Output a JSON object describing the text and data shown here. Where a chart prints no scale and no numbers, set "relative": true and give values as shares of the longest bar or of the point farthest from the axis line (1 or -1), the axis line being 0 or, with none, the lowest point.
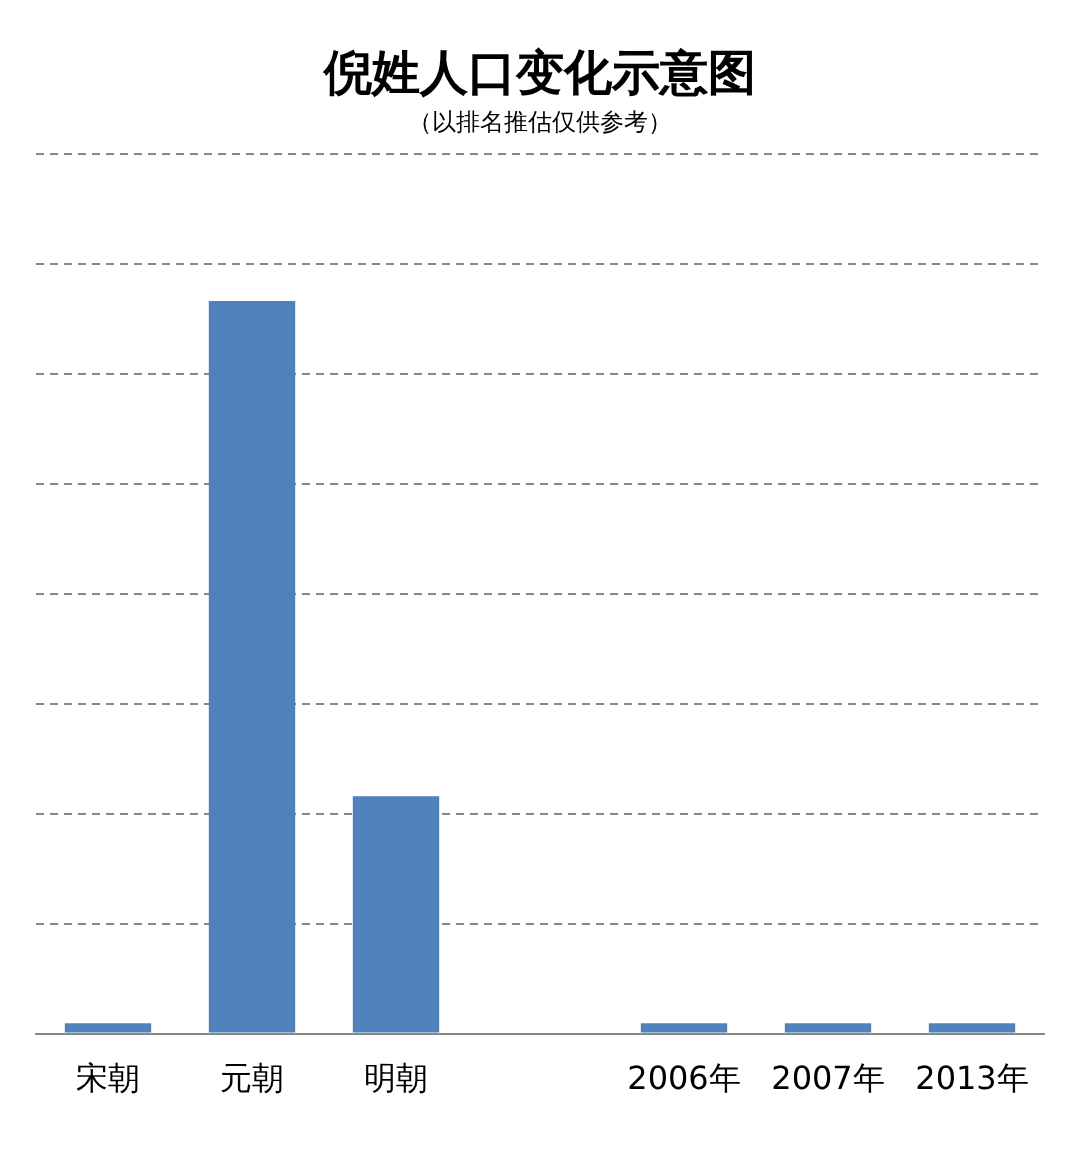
{
  "chart_data": {
    "type": "bar",
    "title": "倪姓人口变化示意图",
    "subtitle": "（以排名推估仅供参考）",
    "categories": [
      "宋朝",
      "元朝",
      "明朝",
      null,
      "2006年",
      "2007年",
      "2013年"
    ],
    "values": [
      0.014,
      1,
      0.324,
      null,
      0.014,
      0.014,
      0.014
    ],
    "color": "#4f81bd",
    "relative": true,
    "grid": "y",
    "legend": false
  }
}
